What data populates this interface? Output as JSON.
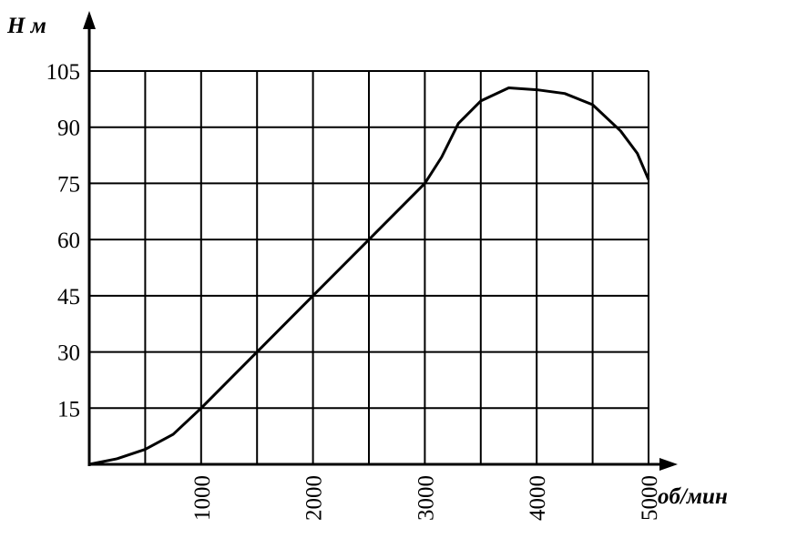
{
  "chart_data": {
    "type": "line",
    "y_label": "Н м",
    "x_label": "об/мин",
    "x": [
      0,
      250,
      500,
      750,
      1000,
      1500,
      2000,
      2500,
      3000,
      3150,
      3300,
      3500,
      3750,
      4000,
      4250,
      4500,
      4750,
      4900,
      5000
    ],
    "series": [
      {
        "color": "#000000",
        "values": [
          0,
          1.5,
          4,
          8,
          15,
          30,
          45,
          60,
          75,
          82,
          91,
          97,
          100.5,
          100,
          99,
          96,
          89,
          83,
          76
        ]
      }
    ],
    "xlim": [
      0,
      5000
    ],
    "ylim": [
      0,
      105
    ],
    "xticks": [
      1000,
      2000,
      3000,
      4000,
      5000
    ],
    "x_minor_ticks": [
      500,
      1500,
      2500,
      3500,
      4500
    ],
    "yticks": [
      15,
      30,
      45,
      60,
      75,
      90,
      105
    ],
    "grid": true
  }
}
